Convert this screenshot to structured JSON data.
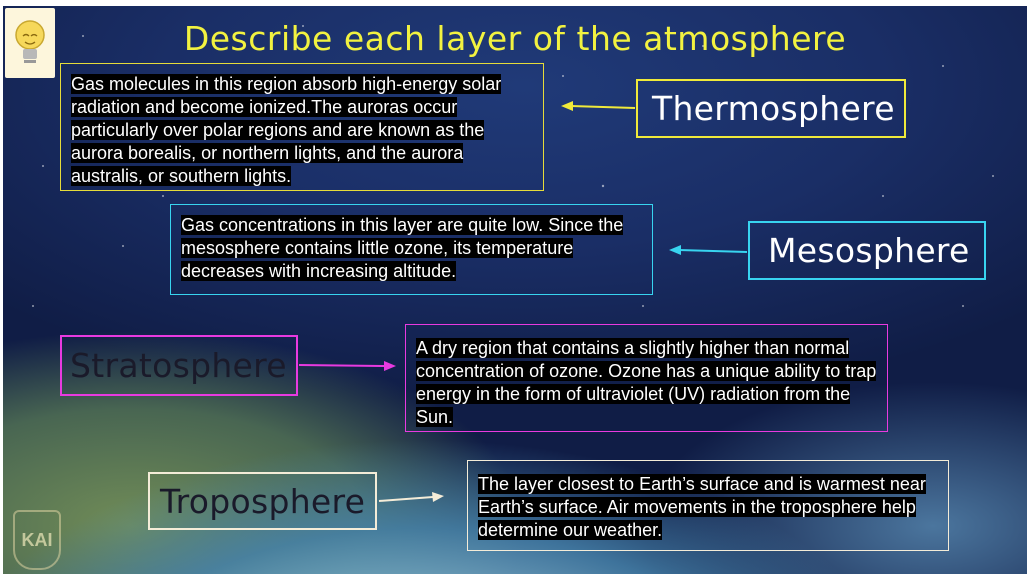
{
  "slide": {
    "title": "Describe each layer of the atmosphere",
    "logo_text": "KAI"
  },
  "layers": {
    "thermosphere": {
      "label": "Thermosphere",
      "description": "Gas molecules in this region absorb high-energy solar radiation and become ionized.The auroras occur particularly over polar regions and are known as the aurora borealis, or northern lights, and the aurora australis, or southern lights.",
      "color": "#f0ea3a"
    },
    "mesosphere": {
      "label": "Mesosphere",
      "description": "Gas concentrations in this layer are quite low. Since the mesosphere contains little ozone, its temperature decreases with increasing altitude.",
      "color": "#38d4f0"
    },
    "stratosphere": {
      "label": "Stratosphere",
      "description": "A dry region that contains a slightly higher than normal concentration of ozone. Ozone has a unique ability to trap energy in the form of ultraviolet (UV) radiation from the Sun.",
      "color": "#e83ae0"
    },
    "troposphere": {
      "label": "Troposphere",
      "description": "The layer closest to Earth’s surface and is warmest near Earth’s surface. Air movements in the troposphere help determine our weather.",
      "color": "#f4ecd8"
    }
  },
  "icons": {
    "bulb": "lightbulb-icon",
    "logo": "kai-logo"
  }
}
